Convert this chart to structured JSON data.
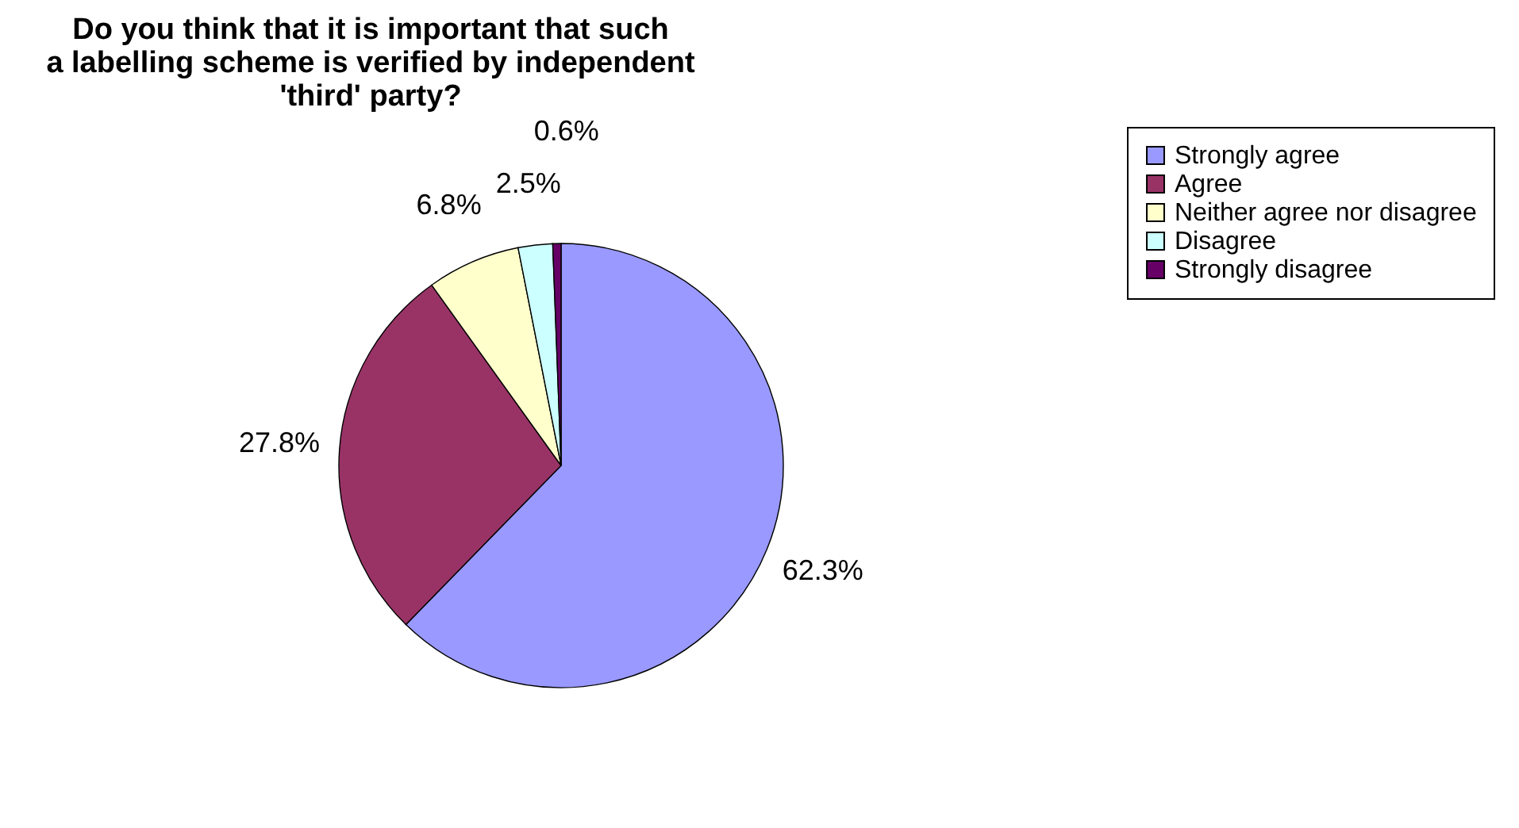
{
  "chart_data": {
    "type": "pie",
    "title": "Do you think that it is important that such\na labelling scheme is verified by independent\n'third' party?",
    "categories": [
      "Strongly agree",
      "Agree",
      "Neither agree nor disagree",
      "Disagree",
      "Strongly disagree"
    ],
    "values": [
      62.3,
      27.8,
      6.8,
      2.5,
      0.6
    ],
    "colors": [
      "#9999ff",
      "#993366",
      "#ffffcc",
      "#ccffff",
      "#660066"
    ],
    "value_labels": [
      "62.3%",
      "27.8%",
      "6.8%",
      "2.5%",
      "0.6%"
    ],
    "legend": "right"
  }
}
